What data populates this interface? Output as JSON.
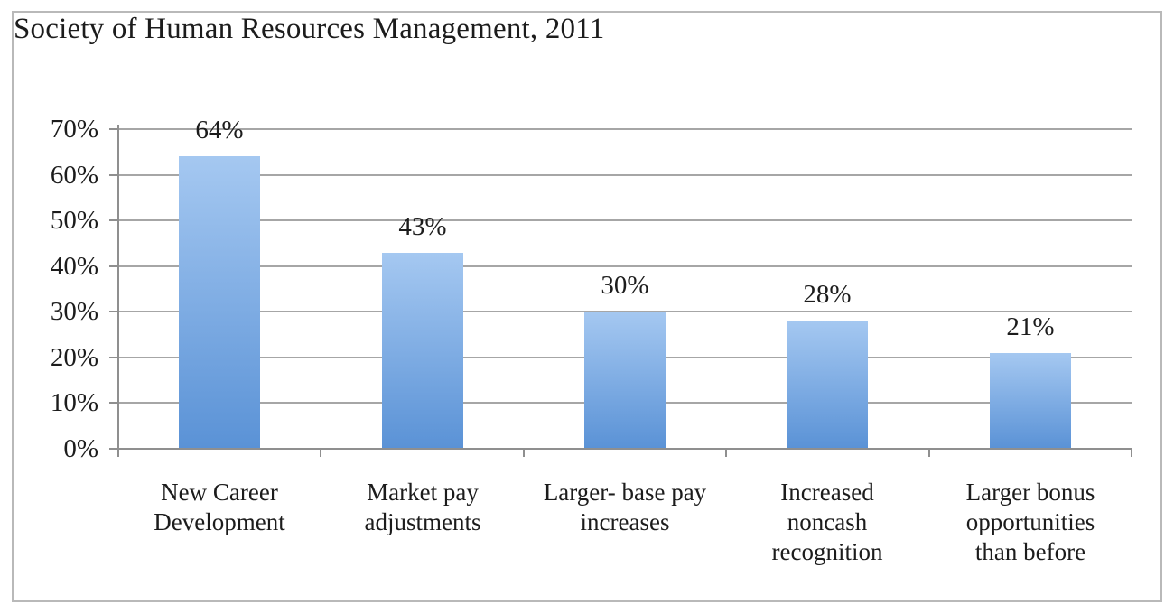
{
  "title": "Society of Human Resources Management, 2011",
  "chart_data": {
    "type": "bar",
    "title": "Society of Human Resources Management, 2011",
    "categories": [
      "New Career Development",
      "Market pay adjustments",
      "Larger- base pay increases",
      "Increased noncash recognition",
      "Larger bonus opportunities than before"
    ],
    "category_label_lines": [
      [
        "New Career",
        "Development"
      ],
      [
        "Market pay",
        "adjustments"
      ],
      [
        "Larger- base pay",
        "increases"
      ],
      [
        "Increased",
        "noncash",
        "recognition"
      ],
      [
        "Larger bonus",
        "opportunities",
        "than before"
      ]
    ],
    "values": [
      64,
      43,
      30,
      28,
      21
    ],
    "data_labels": [
      "64%",
      "43%",
      "30%",
      "28%",
      "21%"
    ],
    "y_axis": {
      "max": 70,
      "min": 0,
      "tick_step": 10,
      "tick_labels": [
        "0%",
        "10%",
        "20%",
        "30%",
        "40%",
        "50%",
        "60%",
        "70%"
      ]
    },
    "grid": true,
    "legend": "none",
    "colors": {
      "bar_gradient_top": "#a5c8f1",
      "bar_gradient_bottom": "#5a92d6",
      "gridline": "#a6a6a6",
      "axis": "#8f8f8f",
      "frame_border": "#b9b9b9",
      "text": "#1c1c1c",
      "background": "#ffffff"
    }
  }
}
